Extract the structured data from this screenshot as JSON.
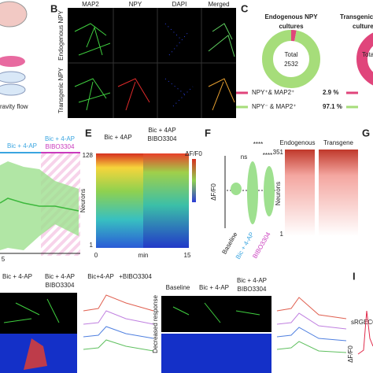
{
  "panel_labels": [
    "B",
    "C",
    "E",
    "F",
    "G",
    "I"
  ],
  "panel_a": {
    "caption": "ravity flow"
  },
  "panel_b": {
    "columns": [
      "MAP2",
      "NPY",
      "DAPI",
      "Merged"
    ],
    "rows": [
      "Endogenous NPY",
      "Transgenic NPY"
    ]
  },
  "panel_c": {
    "donuts": [
      {
        "title": "Endogenous NPY",
        "subtitle": "cultures",
        "total_label": "Total",
        "total": 2532,
        "values": [
          2.9,
          97.1
        ],
        "value_labels": [
          "2.9 %",
          "97.1 %"
        ],
        "legend": [
          "NPY⁺& MAP2⁺",
          "NPY⁻ & MAP2⁺"
        ],
        "colors": [
          "#e0457b",
          "#a6dd7a"
        ]
      },
      {
        "title": "Transgenic NPY",
        "subtitle": "cultures",
        "total_label": "Total"
      }
    ]
  },
  "panel_d": {
    "conditions": [
      "Bic + 4-AP",
      "Bic + 4-AP",
      "BIBO3304"
    ],
    "x_label": "5"
  },
  "panel_e": {
    "conditions": [
      "Bic + 4AP",
      "Bic + 4AP",
      "BIBO3304"
    ],
    "y_label": "Neurons",
    "y_top": "128",
    "y_bottom": "1",
    "x_start": "0",
    "x_unit": "min",
    "x_end": "15",
    "colorbar_label": "ΔF/F0"
  },
  "panel_f": {
    "significance": [
      "****",
      "ns",
      "****"
    ],
    "y_label": "ΔF/F0",
    "groups": [
      "Baseline",
      "Bic + 4-AP",
      "BIBO3304"
    ],
    "heatmaps": [
      "Endogenous",
      "Transgene"
    ],
    "y_label_2": "Neurons",
    "y_top": "351",
    "y_bottom": "1"
  },
  "panel_h": {
    "conditions": [
      "Bic + 4-AP",
      "Bic + 4-AP",
      "BIBO3304",
      "Bic+4-AP",
      "+BIBO3304"
    ],
    "conditions_2": [
      "Baseline",
      "Bic + 4-AP",
      "Bic + 4-AP",
      "BIBO3304"
    ],
    "row_label": "Decreased response"
  },
  "panel_i": {
    "sensor": "sRGECO",
    "y_label": "ΔF/F0"
  }
}
